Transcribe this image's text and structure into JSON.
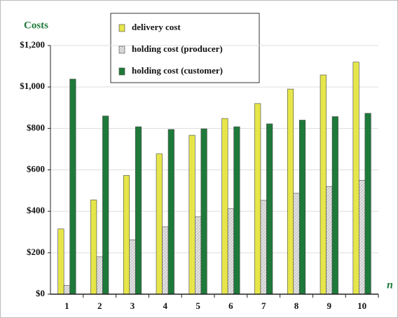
{
  "chart_data": {
    "type": "bar",
    "y_label": "Costs",
    "x_label": "n",
    "categories": [
      "1",
      "2",
      "3",
      "4",
      "5",
      "6",
      "7",
      "8",
      "9",
      "10"
    ],
    "series": [
      {
        "name": "delivery cost",
        "color": "#e6e64a",
        "values": [
          315,
          455,
          573,
          677,
          767,
          848,
          920,
          990,
          1058,
          1120
        ]
      },
      {
        "name": "holding cost (producer)",
        "color": "#cccccc",
        "values": [
          42,
          180,
          262,
          325,
          373,
          413,
          453,
          487,
          520,
          550
        ]
      },
      {
        "name": "holding cost (customer)",
        "color": "#1e7a3a",
        "values": [
          1038,
          860,
          808,
          795,
          798,
          808,
          822,
          840,
          857,
          873
        ]
      }
    ],
    "ylim": [
      0,
      1200
    ],
    "yticks": [
      {
        "value": 0,
        "label": "$0"
      },
      {
        "value": 200,
        "label": "$200"
      },
      {
        "value": 400,
        "label": "$400"
      },
      {
        "value": 600,
        "label": "$600"
      },
      {
        "value": 800,
        "label": "$800"
      },
      {
        "value": 1000,
        "label": "$1,000"
      },
      {
        "value": 1200,
        "label": "$1,200"
      }
    ],
    "grid": true,
    "legend": "top"
  }
}
